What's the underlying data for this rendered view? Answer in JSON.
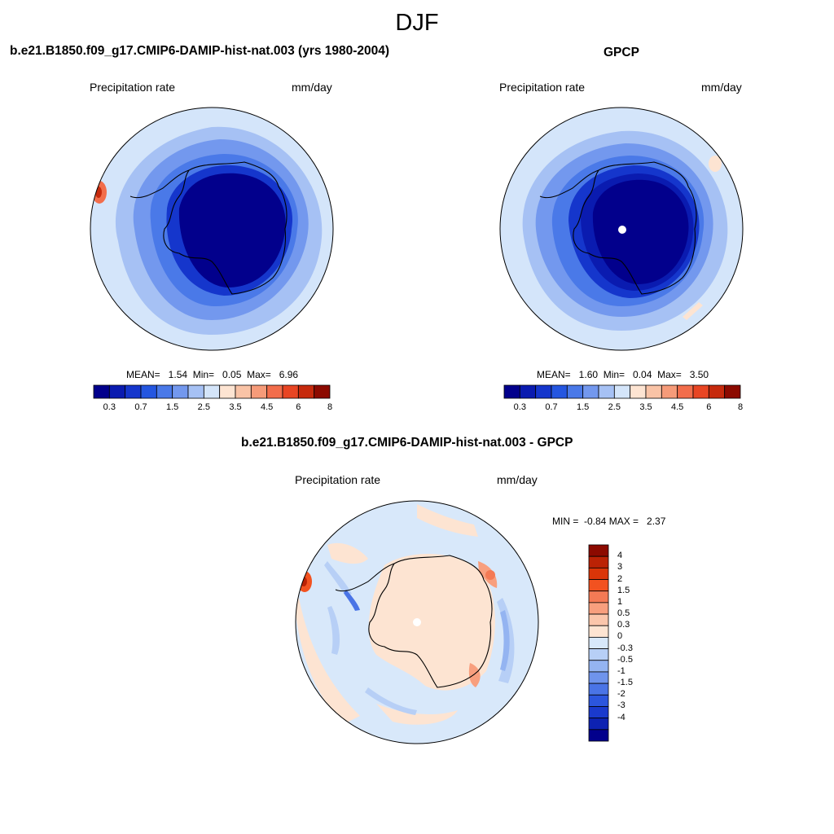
{
  "season_title": "DJF",
  "panels": [
    {
      "title": "b.e21.B1850.f09_g17.CMIP6-DAMIP-hist-nat.003 (yrs 1980-2004)",
      "variable": "Precipitation rate",
      "units": "mm/day",
      "stats": "MEAN=   1.54  Min=   0.05  Max=   6.96",
      "map_description": "polar-stereographic-south-antarctica-precip"
    },
    {
      "title": "GPCP",
      "variable": "Precipitation rate",
      "units": "mm/day",
      "stats": "MEAN=   1.60  Min=   0.04  Max=   3.50",
      "map_description": "polar-stereographic-south-antarctica-precip"
    },
    {
      "title": "b.e21.B1850.f09_g17.CMIP6-DAMIP-hist-nat.003 - GPCP",
      "variable": "Precipitation rate",
      "units": "mm/day",
      "stats": "MIN =  -0.84 MAX =   2.37",
      "map_description": "polar-stereographic-south-antarctica-precip-difference"
    }
  ],
  "colorbar_abs": {
    "colors": [
      "#02008c",
      "#0a1bb0",
      "#1536cc",
      "#2456e0",
      "#4a79e8",
      "#7398ee",
      "#a6c1f4",
      "#d4e5fa",
      "#fde4d2",
      "#f9c3a6",
      "#f69b79",
      "#f26d4b",
      "#e84523",
      "#c62a0d",
      "#8c0a00"
    ],
    "labels": [
      "0.3",
      "0.7",
      "1.5",
      "2.5",
      "3.5",
      "4.5",
      "6",
      "8"
    ]
  },
  "colorbar_diff": {
    "colors": [
      "#8c0a00",
      "#bb2205",
      "#db3508",
      "#f25220",
      "#f47a55",
      "#f89f7e",
      "#fbc6ab",
      "#fde4d2",
      "#d8e8fa",
      "#b7cff6",
      "#94b4f1",
      "#6f94ec",
      "#4a74e6",
      "#2c56de",
      "#1a3acd",
      "#0d22b2",
      "#02008c"
    ],
    "labels": [
      "4",
      "3",
      "2",
      "1.5",
      "1",
      "0.5",
      "0.3",
      "0",
      "-0.3",
      "-0.5",
      "-1",
      "-1.5",
      "-2",
      "-3",
      "-4"
    ]
  }
}
